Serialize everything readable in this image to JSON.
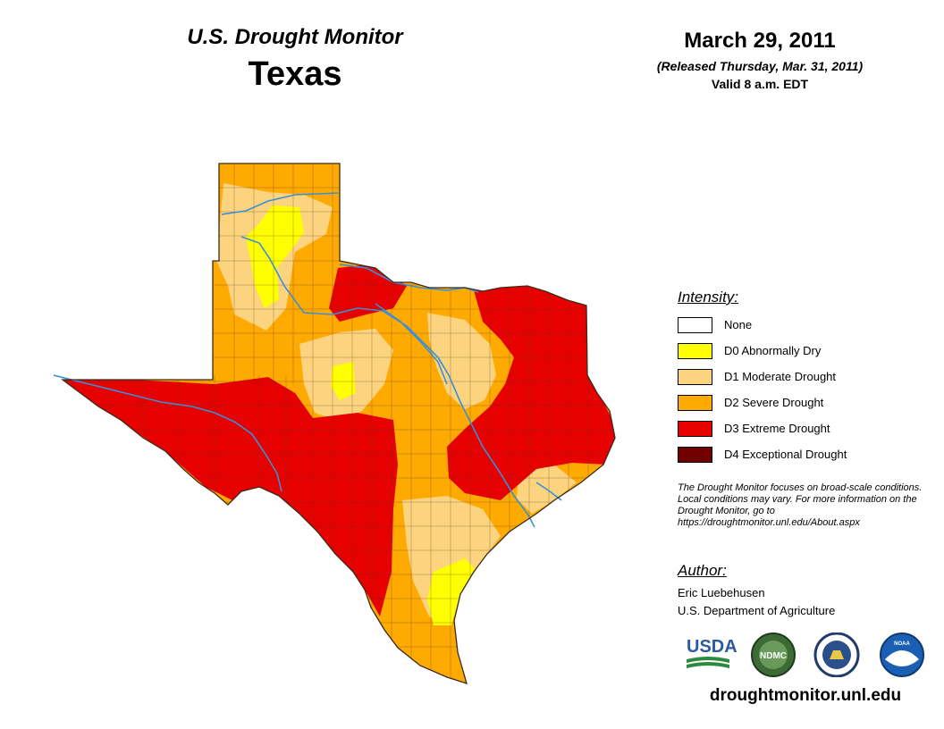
{
  "header": {
    "subtitle": "U.S. Drought Monitor",
    "state": "Texas",
    "date": "March 29, 2011",
    "released": "(Released Thursday, Mar. 31, 2011)",
    "valid": "Valid 8 a.m. EDT"
  },
  "legend": {
    "title": "Intensity:",
    "items": [
      {
        "label": "None",
        "color": "#ffffff"
      },
      {
        "label": "D0 Abnormally Dry",
        "color": "#ffff00"
      },
      {
        "label": "D1 Moderate Drought",
        "color": "#fcd37f"
      },
      {
        "label": "D2 Severe Drought",
        "color": "#ffaa00"
      },
      {
        "label": "D3 Extreme Drought",
        "color": "#e60000"
      },
      {
        "label": "D4 Exceptional Drought",
        "color": "#730000"
      }
    ]
  },
  "disclaimer": "The Drought Monitor focuses on broad-scale conditions. Local conditions may vary. For more information on the Drought Monitor, go to https://droughtmonitor.unl.edu/About.aspx",
  "author": {
    "title": "Author:",
    "name": "Eric Luebehusen",
    "org": "U.S. Department of Agriculture"
  },
  "logos": {
    "usda": "USDA",
    "ndmc": "NDMC",
    "noaa": "NOAA"
  },
  "footer": {
    "site": "droughtmonitor.unl.edu"
  },
  "colors": {
    "river": "#3a8fd9",
    "border": "#3a2a1a"
  }
}
